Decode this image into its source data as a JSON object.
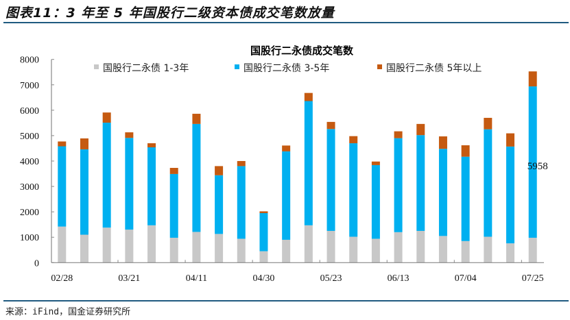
{
  "figure_title": "图表11：3 年至 5 年国股行二级资本债成交笔数放量",
  "source": "来源：iFind，国金证券研究所",
  "chart_data": {
    "type": "bar",
    "stacked": true,
    "title": "国股行二永债成交笔数",
    "xlabel": "",
    "ylabel": "",
    "ylim": [
      0,
      8000
    ],
    "yticks": [
      0,
      1000,
      2000,
      3000,
      4000,
      5000,
      6000,
      7000,
      8000
    ],
    "grid": false,
    "legend": "top",
    "categories": [
      "02/28",
      "",
      "",
      "03/21",
      "",
      "",
      "04/11",
      "",
      "",
      "04/30",
      "",
      "",
      "05/23",
      "",
      "",
      "06/13",
      "",
      "",
      "07/04",
      "",
      "",
      "07/25"
    ],
    "series": [
      {
        "name": "国股行二永债 1-3年",
        "color": "#c8c8c8",
        "values": [
          1420,
          1100,
          1380,
          1300,
          1470,
          980,
          1210,
          1130,
          940,
          450,
          900,
          1470,
          1250,
          1020,
          940,
          1200,
          1250,
          1050,
          850,
          1020,
          760,
          980
        ]
      },
      {
        "name": "国股行二永债 3-5年",
        "color": "#00b0f0",
        "values": [
          3160,
          3360,
          4130,
          3610,
          3070,
          2510,
          4250,
          2310,
          2860,
          1500,
          3480,
          4890,
          4010,
          3680,
          2900,
          3700,
          3770,
          3430,
          3320,
          4230,
          3810,
          5958
        ]
      },
      {
        "name": "国股行二永债 5年以上",
        "color": "#c55a11",
        "values": [
          190,
          430,
          400,
          220,
          160,
          240,
          400,
          360,
          200,
          70,
          230,
          320,
          280,
          280,
          140,
          270,
          440,
          490,
          450,
          450,
          520,
          590
        ]
      }
    ],
    "annotations": [
      {
        "text": "5958",
        "category_index": 21,
        "series": "国股行二永债 3-5年"
      }
    ]
  }
}
